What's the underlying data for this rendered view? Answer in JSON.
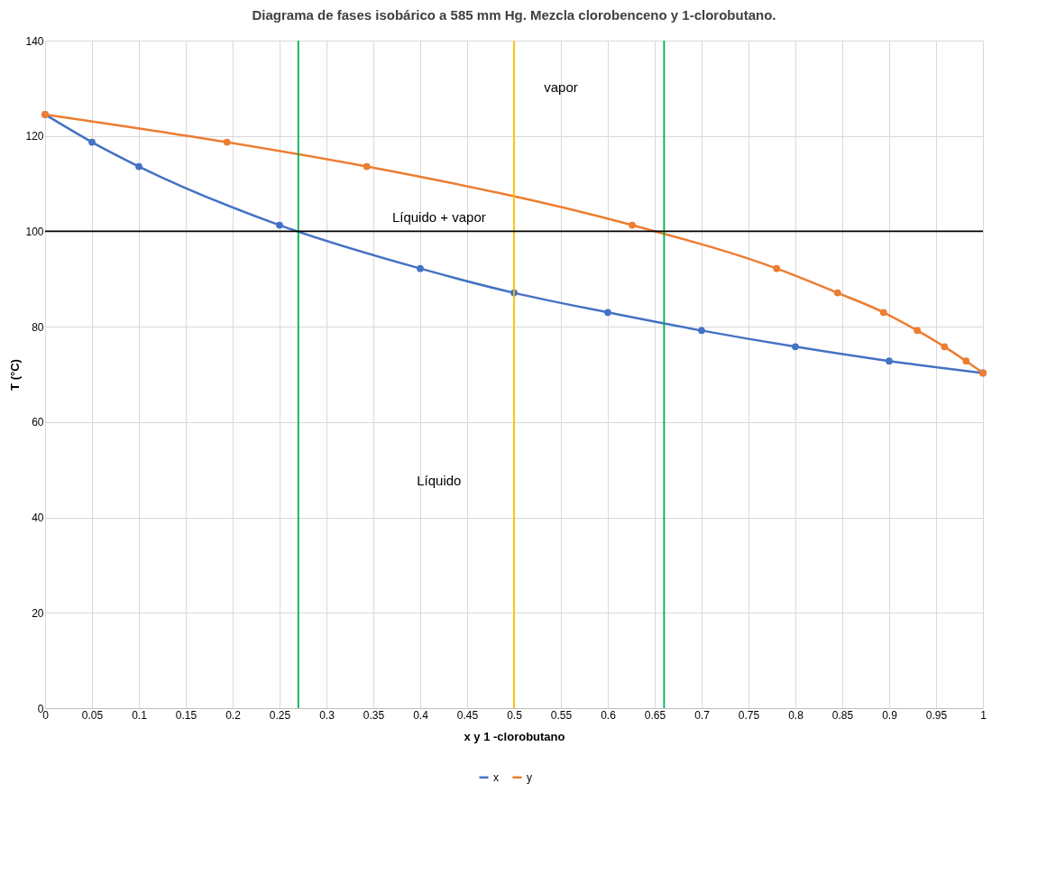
{
  "chart_data": {
    "type": "line",
    "title": "Diagrama de fases isobárico a 585 mm Hg. Mezcla clorobenceno y 1-clorobutano.",
    "xlabel": "x y  1 -clorobutano",
    "ylabel": "T (°C)",
    "series": [
      {
        "name": "x",
        "color": "#4472c4",
        "x": [
          0,
          0.05,
          0.1,
          0.25,
          0.4,
          0.5,
          0.6,
          0.7,
          0.8,
          0.9,
          1
        ],
        "values": [
          124.5,
          118.7,
          113.6,
          101.3,
          92.2,
          87.1,
          83.0,
          79.2,
          75.8,
          72.8,
          70.3
        ]
      },
      {
        "name": "y",
        "color": "#ed7d31",
        "x": [
          0,
          0.194,
          0.343,
          0.626,
          0.78,
          0.845,
          0.894,
          0.93,
          0.959,
          0.982,
          1
        ],
        "values": [
          124.5,
          118.7,
          113.6,
          101.3,
          92.2,
          87.1,
          83.0,
          79.2,
          75.8,
          72.8,
          70.3
        ]
      }
    ],
    "xlim": [
      0,
      1
    ],
    "xticks": [
      0,
      0.05,
      0.1,
      0.15,
      0.2,
      0.25,
      0.3,
      0.35,
      0.4,
      0.45,
      0.5,
      0.55,
      0.6,
      0.65,
      0.7,
      0.75,
      0.8,
      0.85,
      0.9,
      0.95,
      1
    ],
    "ylim": [
      0,
      140
    ],
    "yticks": [
      0,
      20,
      40,
      60,
      80,
      100,
      120,
      140
    ],
    "ref_lines": [
      {
        "axis": "x",
        "value": 0.27,
        "color": "#00b050"
      },
      {
        "axis": "x",
        "value": 0.5,
        "color": "#ffc000"
      },
      {
        "axis": "x",
        "value": 0.66,
        "color": "#00b050"
      },
      {
        "axis": "y",
        "value": 100,
        "color": "#000000"
      }
    ],
    "annotations": [
      "vapor",
      "Líquido + vapor",
      "Líquido"
    ],
    "grid": true,
    "legend": "bottom",
    "marker": "circle",
    "line_style": "solid"
  }
}
